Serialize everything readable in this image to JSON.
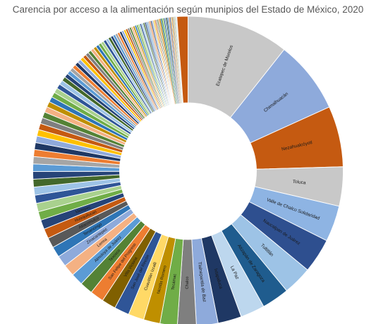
{
  "chart_data": {
    "type": "pie",
    "variant": "donut",
    "title": "Carencia por acceso a la alimentación según munipios del Estado de México, 2020",
    "legend": "none",
    "categories": [
      "Ecatepec de Morelos",
      "Chimalhuacán",
      "Nezahualcóyotl",
      "Toluca",
      "Valle de Chalco Solidaridad",
      "Naucalpan de Juárez",
      "Tultitlán",
      "Atizapán de Zaragoza",
      "La Paz",
      "Ixtapaluca",
      "Tlalnepantla de Baz",
      "Chalco",
      "Tecámac",
      "Nicolás Romero",
      "Cuautitlán Izcalli",
      "San José del Rincón",
      "Villa Victoria",
      "San Felipe del Progreso",
      "Texcoco",
      "Almoloya de Juárez",
      "Lerma",
      "Zinacantepec",
      "Tenancingo",
      "Atlacomulco",
      "Huixquilucan",
      "Metepec"
    ],
    "values": [
      260,
      185,
      155,
      100,
      92,
      88,
      74,
      70,
      62,
      60,
      55,
      48,
      44,
      42,
      40,
      38,
      36,
      35,
      33,
      31,
      30,
      28,
      27,
      26,
      25,
      24
    ],
    "other_values": [
      22,
      21.5,
      21,
      20.5,
      20,
      19.5,
      19,
      18.5,
      18,
      17.5,
      17,
      16.5,
      16,
      15.5,
      15,
      14.5,
      14,
      13.5,
      13,
      12.5,
      12,
      11.5,
      11,
      10.5,
      10,
      9.8,
      9.6,
      9.4,
      9.2,
      9,
      8.8,
      8.6,
      8.4,
      8.2,
      8,
      7.8,
      7.6,
      7.4,
      7.2,
      7,
      6.8,
      6.6,
      6.4,
      6.2,
      6,
      5.8,
      5.6,
      5.4,
      5.2,
      5,
      4.9,
      4.8,
      4.7,
      4.6,
      4.5,
      4.4,
      4.3,
      4.2,
      4.1,
      4,
      3.9,
      3.8,
      3.7,
      3.6,
      3.5,
      3.4,
      3.3,
      3.2,
      3.1,
      3,
      2.9,
      2.8,
      2.7,
      2.6,
      2.5,
      2.4,
      2.3,
      2.2,
      2.1,
      2,
      1.9,
      1.8,
      1.7,
      1.6,
      1.5,
      1.4,
      1.3,
      1.2,
      1.1,
      1,
      0.9,
      0.8,
      0.7,
      0.6,
      0.5,
      0.45,
      0.4,
      0.35,
      0.3,
      0.25
    ],
    "last_value": 28,
    "colors": [
      "#c8c8c8",
      "#8eaadb",
      "#c55a11",
      "#c8c8c8",
      "#8eb4e3",
      "#2e4f8f",
      "#9dc3e6",
      "#1f5c8e",
      "#bdd7ee",
      "#1f3864",
      "#8eaadb",
      "#7f7f7f",
      "#70ad47",
      "#bf8f00",
      "#ffd966",
      "#2f5597",
      "#806000",
      "#ed7d31",
      "#548235",
      "#5b9bd5",
      "#f4b183",
      "#8eaadb",
      "#2e75b6",
      "#595959",
      "#c55a11",
      "#264478"
    ],
    "other_colors": [
      "#70ad47",
      "#a9d18e",
      "#2f5597",
      "#9dc3e6",
      "#43682b",
      "#264478",
      "#5b9bd5",
      "#a5a5a5",
      "#ed7d31",
      "#1f3864",
      "#8faadc",
      "#ffc000",
      "#c55a11",
      "#7f7f7f",
      "#548235",
      "#f4b183",
      "#bf8f00",
      "#2e75b6"
    ],
    "last_color": "#c55a11"
  }
}
